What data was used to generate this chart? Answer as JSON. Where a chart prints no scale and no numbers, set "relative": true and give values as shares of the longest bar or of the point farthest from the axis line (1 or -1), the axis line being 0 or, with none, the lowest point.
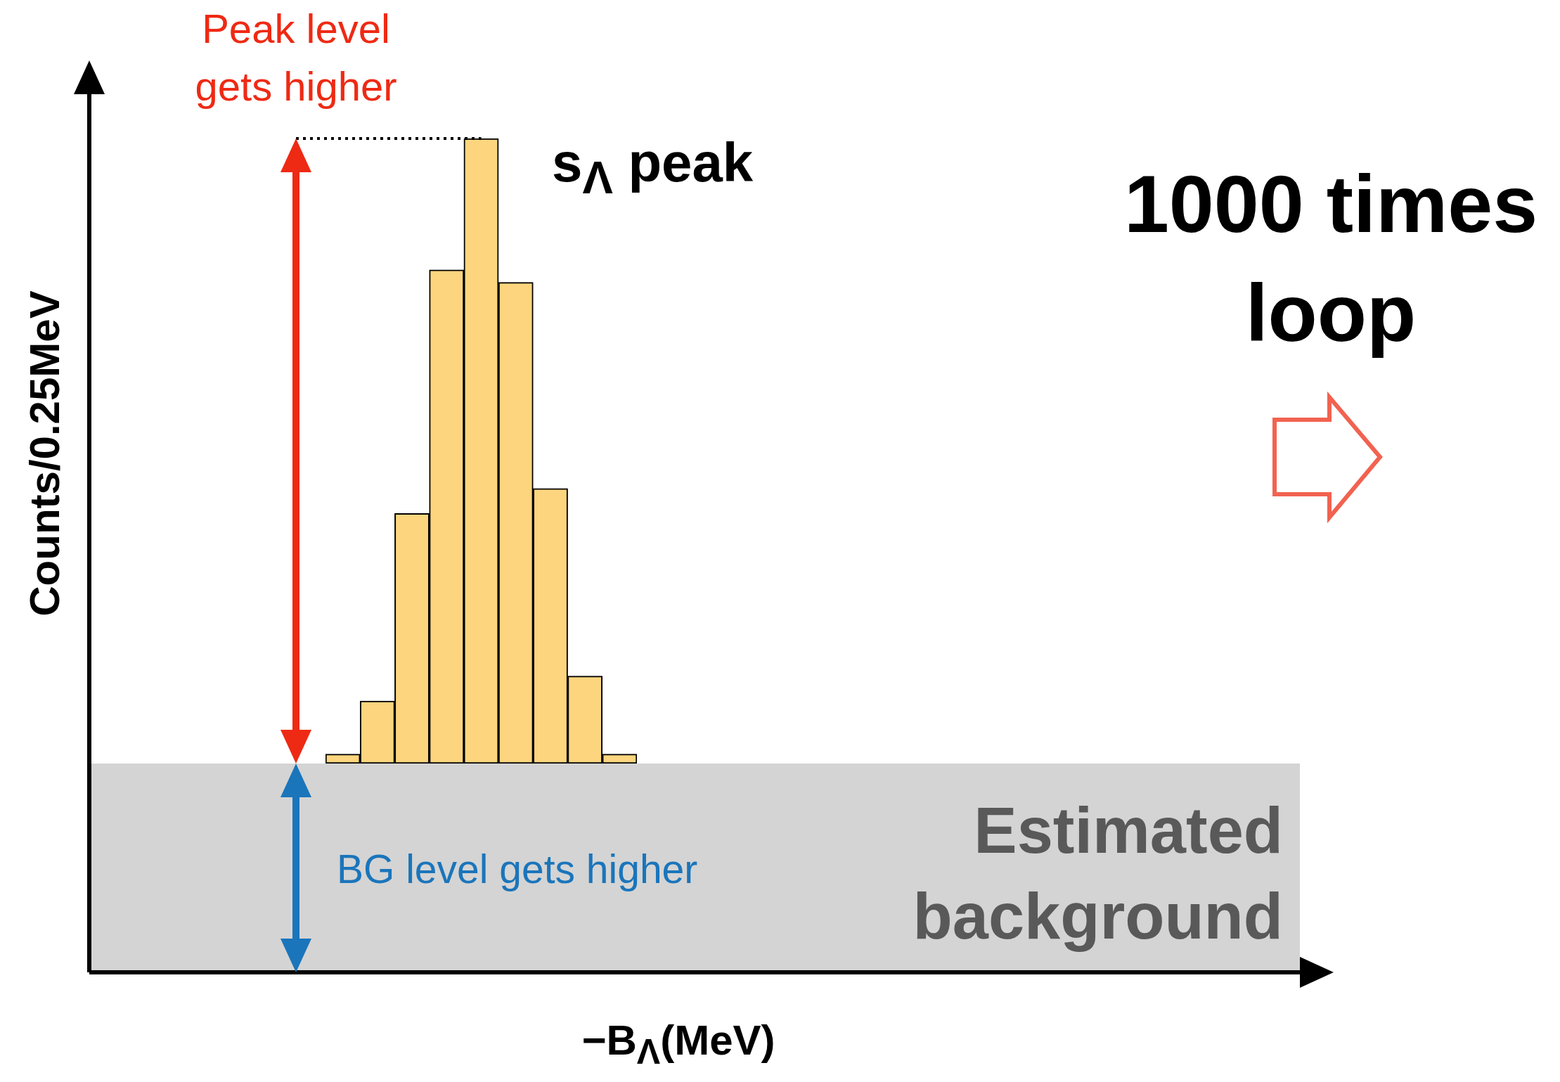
{
  "chart_data": {
    "type": "bar",
    "relative": true,
    "categories": [
      null,
      null,
      null,
      null,
      null,
      null,
      null,
      null,
      null
    ],
    "values": [
      0.015,
      0.1,
      0.4,
      0.79,
      1,
      0.77,
      0.44,
      0.14,
      0.015
    ],
    "color": "#fdd57e",
    "ref_lines": [
      {
        "axis": "y",
        "value": 1,
        "line_style": "dotted",
        "color": "#000000"
      }
    ],
    "annotations": [
      "Peak level gets higher",
      "s$_{Λ}$ peak",
      "1000 times loop",
      "BG level gets higher",
      "Estimated background",
      "−B$_{Λ}$(MeV)",
      "Counts/0.25MeV"
    ]
  }
}
